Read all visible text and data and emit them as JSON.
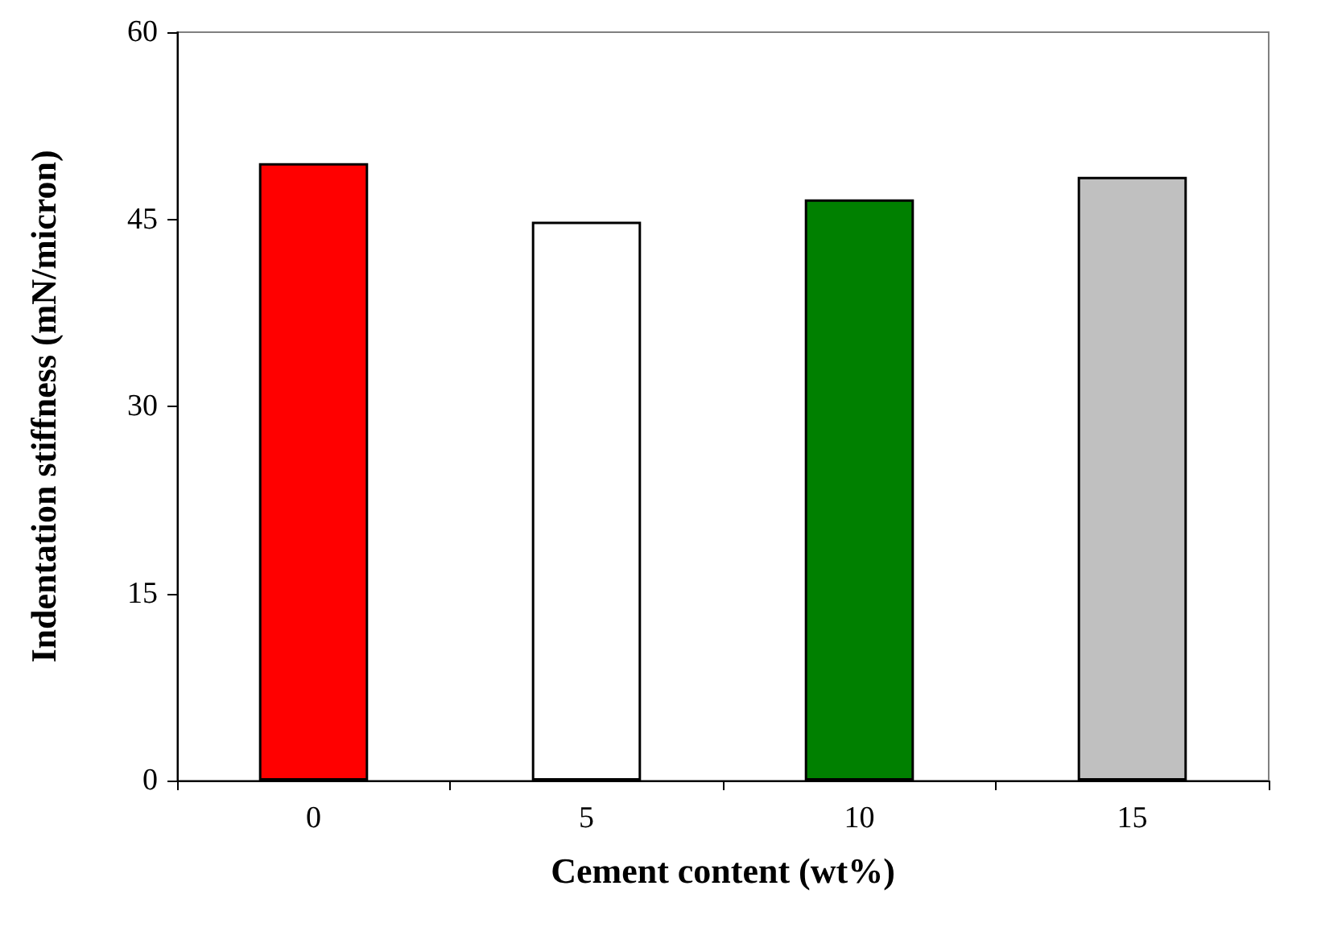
{
  "chart_data": {
    "type": "bar",
    "xlabel": "Cement content (wt%)",
    "ylabel": "Indentation stiffness (mN/micron)",
    "categories": [
      "0",
      "5",
      "10",
      "15"
    ],
    "values": [
      49.5,
      44.8,
      46.6,
      48.4
    ],
    "colors": [
      "#ff0000",
      "#ffffff",
      "#008000",
      "#c0c0c0"
    ],
    "ylim": [
      0,
      60
    ],
    "yticks": [
      0,
      15,
      30,
      45,
      60
    ]
  }
}
